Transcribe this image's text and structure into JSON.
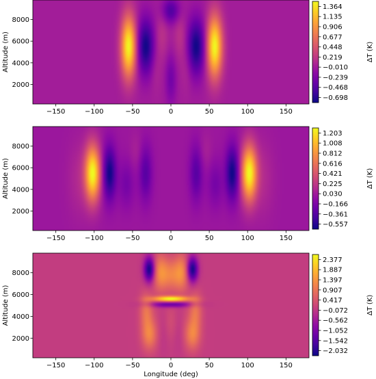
{
  "chart_data": [
    {
      "type": "heatmap",
      "xlabel": "",
      "ylabel": "Altitude (m)",
      "xlim": [
        -180,
        180
      ],
      "ylim": [
        200,
        9800
      ],
      "xticks": [
        "−150",
        "−100",
        "−50",
        "0",
        "50",
        "100",
        "150"
      ],
      "xtick_values": [
        -150,
        -100,
        -50,
        0,
        50,
        100,
        150
      ],
      "yticks": [
        "2000",
        "4000",
        "6000",
        "8000"
      ],
      "ytick_values": [
        2000,
        4000,
        6000,
        8000
      ],
      "colormap": "plasma",
      "colorbar_label": "ΔT (K)",
      "colorbar_range": [
        -0.813,
        1.479
      ],
      "colorbar_ticks": [
        "1.364",
        "1.135",
        "0.906",
        "0.677",
        "0.448",
        "0.219",
        "−0.010",
        "−0.239",
        "−0.468",
        "−0.698"
      ],
      "colorbar_tick_values": [
        1.364,
        1.135,
        0.906,
        0.677,
        0.448,
        0.219,
        -0.01,
        -0.239,
        -0.468,
        -0.698
      ],
      "background_value": 0.0,
      "features": [
        {
          "kind": "max",
          "lon": -55,
          "alt": 5500,
          "value": 1.36
        },
        {
          "kind": "max",
          "lon": 57,
          "alt": 5500,
          "value": 1.36
        },
        {
          "kind": "min",
          "lon": -33,
          "alt": 5500,
          "value": -0.7
        },
        {
          "kind": "min",
          "lon": 33,
          "alt": 5500,
          "value": -0.7
        },
        {
          "kind": "min",
          "lon": 0,
          "alt": 8700,
          "value": -0.45
        },
        {
          "kind": "min",
          "lon": 0,
          "alt": 2500,
          "value": -0.25
        }
      ]
    },
    {
      "type": "heatmap",
      "xlabel": "",
      "ylabel": "Altitude (m)",
      "xlim": [
        -180,
        180
      ],
      "ylim": [
        200,
        9800
      ],
      "xticks": [
        "−150",
        "−100",
        "−50",
        "0",
        "50",
        "100",
        "150"
      ],
      "xtick_values": [
        -150,
        -100,
        -50,
        0,
        50,
        100,
        150
      ],
      "yticks": [
        "2000",
        "4000",
        "6000",
        "8000"
      ],
      "ytick_values": [
        2000,
        4000,
        6000,
        8000
      ],
      "colormap": "plasma",
      "colorbar_label": "ΔT (K)",
      "colorbar_range": [
        -0.655,
        1.301
      ],
      "colorbar_ticks": [
        "1.203",
        "1.008",
        "0.812",
        "0.616",
        "0.421",
        "0.225",
        "0.030",
        "−0.166",
        "−0.361",
        "−0.557"
      ],
      "colorbar_tick_values": [
        1.203,
        1.008,
        0.812,
        0.616,
        0.421,
        0.225,
        0.03,
        -0.166,
        -0.361,
        -0.557
      ],
      "background_value": 0.0,
      "features": [
        {
          "kind": "max",
          "lon": -102,
          "alt": 5500,
          "value": 1.2
        },
        {
          "kind": "max",
          "lon": 102,
          "alt": 5500,
          "value": 1.2
        },
        {
          "kind": "min",
          "lon": -80,
          "alt": 5500,
          "value": -0.56
        },
        {
          "kind": "min",
          "lon": 80,
          "alt": 5500,
          "value": -0.56
        },
        {
          "kind": "min",
          "lon": -33,
          "alt": 5500,
          "value": -0.3
        },
        {
          "kind": "min",
          "lon": 33,
          "alt": 5500,
          "value": -0.3
        }
      ]
    },
    {
      "type": "heatmap",
      "xlabel": "Longitude (deg)",
      "ylabel": "Altitude (m)",
      "xlim": [
        -180,
        180
      ],
      "ylim": [
        200,
        9800
      ],
      "xticks": [
        "−150",
        "−100",
        "−50",
        "0",
        "50",
        "100",
        "150"
      ],
      "xtick_values": [
        -150,
        -100,
        -50,
        0,
        50,
        100,
        150
      ],
      "yticks": [
        "2000",
        "4000",
        "6000",
        "8000"
      ],
      "ytick_values": [
        2000,
        4000,
        6000,
        8000
      ],
      "colormap": "plasma",
      "colorbar_label": "ΔT (K)",
      "colorbar_range": [
        -2.277,
        2.622
      ],
      "colorbar_ticks": [
        "2.377",
        "1.887",
        "1.397",
        "0.907",
        "0.417",
        "−0.072",
        "−0.562",
        "−1.052",
        "−1.542",
        "−2.032"
      ],
      "colorbar_tick_values": [
        2.377,
        1.887,
        1.397,
        0.907,
        0.417,
        -0.072,
        -0.562,
        -1.052,
        -1.542,
        -2.032
      ],
      "background_value": 0.0,
      "features": [
        {
          "kind": "min",
          "lon": -28,
          "alt": 8300,
          "value": -2.0
        },
        {
          "kind": "min",
          "lon": 28,
          "alt": 8300,
          "value": -2.0
        },
        {
          "kind": "max",
          "lon": 0,
          "alt": 5600,
          "value": 2.38
        },
        {
          "kind": "min",
          "lon": 0,
          "alt": 5100,
          "value": -1.3
        },
        {
          "kind": "max",
          "lon": -30,
          "alt": 2500,
          "value": 1.2
        },
        {
          "kind": "max",
          "lon": 30,
          "alt": 2500,
          "value": 1.2
        }
      ]
    }
  ]
}
